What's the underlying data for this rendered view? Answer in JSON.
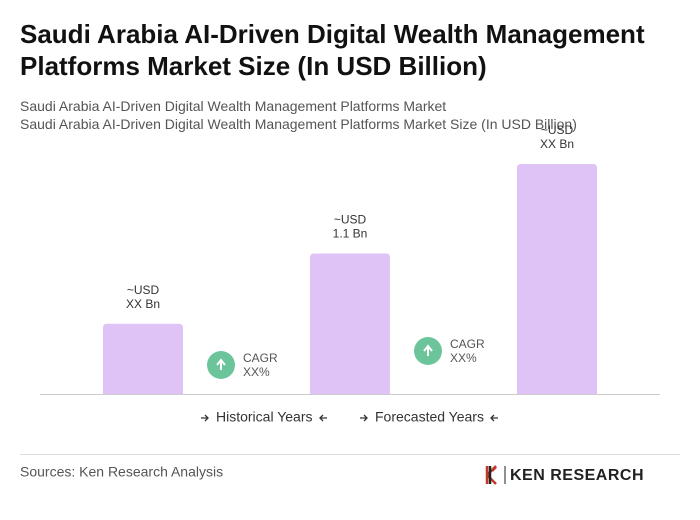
{
  "chart_data": {
    "type": "bar",
    "title": "Saudi Arabia AI-Driven Digital Wealth Management Platforms Market Size (In USD Billion)",
    "subtitle": [
      "Saudi Arabia AI-Driven Digital Wealth Management Platforms Market",
      "Saudi Arabia AI-Driven Digital Wealth Management Platforms Market Size (In USD Billion)"
    ],
    "categories": [
      null,
      null,
      null
    ],
    "values": [
      0.55,
      1.1,
      1.8
    ],
    "value_labels": [
      [
        "~USD",
        "XX Bn"
      ],
      [
        "~USD",
        "1.1 Bn"
      ],
      [
        "~USD",
        "XX Bn"
      ]
    ],
    "color": "#dfc3f7",
    "annotations": [
      [
        "CAGR",
        "XX%"
      ],
      [
        "CAGR",
        "XX%"
      ]
    ],
    "legend": [
      "Historical Years",
      "Forecasted Years"
    ]
  },
  "footer": {
    "source": "Sources: Ken Research Analysis",
    "logo": "KEN RESEARCH"
  }
}
